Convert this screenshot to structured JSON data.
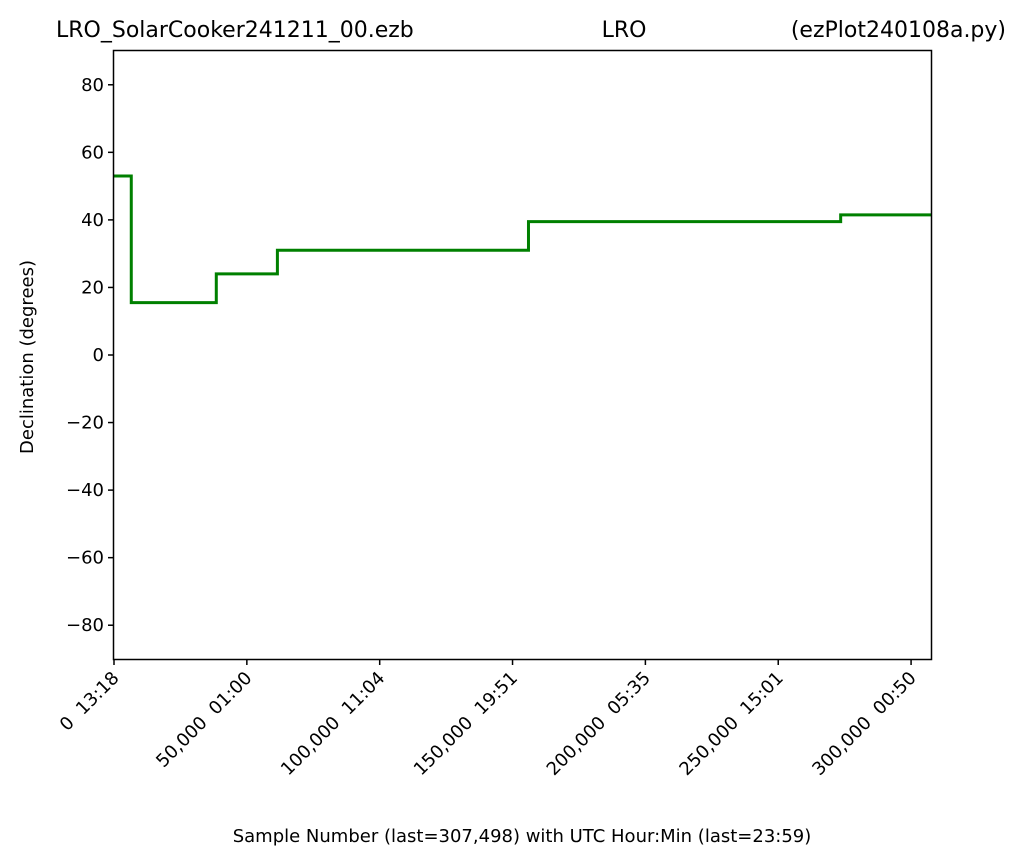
{
  "title": {
    "left": "LRO_SolarCooker241211_00.ezb",
    "center": "LRO",
    "right": "(ezPlot240108a.py)"
  },
  "colors": {
    "line": "#008000",
    "axes": "#000000",
    "background": "#ffffff"
  },
  "chart_data": {
    "type": "line",
    "xlabel": "Sample Number (last=307,498) with UTC Hour:Min (last=23:59)",
    "ylabel": "Declination (degrees)",
    "xlim": [
      0,
      307498
    ],
    "ylim": [
      -90,
      90
    ],
    "grid": false,
    "legend": "none",
    "x_ticks": [
      {
        "value": 0,
        "label": "0  13:18"
      },
      {
        "value": 50000,
        "label": "50,000  01:00"
      },
      {
        "value": 100000,
        "label": "100,000  11:04"
      },
      {
        "value": 150000,
        "label": "150,000  19:51"
      },
      {
        "value": 200000,
        "label": "200,000  05:35"
      },
      {
        "value": 250000,
        "label": "250,000  15:01"
      },
      {
        "value": 300000,
        "label": "300,000  00:50"
      }
    ],
    "y_ticks": [
      {
        "value": 80,
        "label": "80"
      },
      {
        "value": 60,
        "label": "60"
      },
      {
        "value": 40,
        "label": "40"
      },
      {
        "value": 20,
        "label": "20"
      },
      {
        "value": 0,
        "label": "0"
      },
      {
        "value": -20,
        "label": "−20"
      },
      {
        "value": -40,
        "label": "−40"
      },
      {
        "value": -60,
        "label": "−60"
      },
      {
        "value": -80,
        "label": "−80"
      }
    ],
    "series": [
      {
        "x": [
          0,
          6500,
          6500,
          38500,
          38500,
          61500,
          61500,
          156000,
          156000,
          273500,
          273500,
          307498
        ],
        "y": [
          53,
          53,
          15.5,
          15.5,
          24,
          24,
          31,
          31,
          39.5,
          39.5,
          41.5,
          41.5
        ]
      }
    ]
  }
}
